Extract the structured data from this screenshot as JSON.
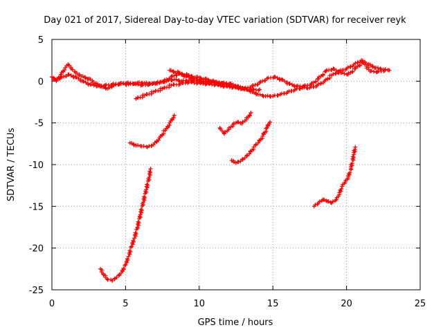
{
  "chart_data": {
    "type": "scatter",
    "title": "Day 021 of 2017, Sidereal Day-to-day VTEC variation (SDTVAR) for receiver reyk",
    "xlabel": "GPS time / hours",
    "ylabel": "SDTVAR / TECUs",
    "xlim": [
      0,
      25
    ],
    "ylim": [
      -25,
      5
    ],
    "grid": true,
    "grid_style": "dotted",
    "x_ticks": [
      0,
      5,
      10,
      15,
      20,
      25
    ],
    "y_ticks": [
      5,
      0,
      -5,
      -10,
      -15,
      -20,
      -25
    ],
    "x_tick_labels": [
      "0",
      "5",
      "10",
      "15",
      "20",
      "25"
    ],
    "y_tick_labels": [
      "5",
      "0",
      "-5",
      "-10",
      "-15",
      "-20",
      "-25"
    ],
    "marker": "+",
    "marker_color": "#ff0000",
    "series": [
      {
        "name": "arc-1",
        "points": [
          [
            0.0,
            0.5
          ],
          [
            0.3,
            0.0
          ],
          [
            0.6,
            0.8
          ],
          [
            0.9,
            1.6
          ],
          [
            1.1,
            2.0
          ],
          [
            1.3,
            1.5
          ],
          [
            1.6,
            1.0
          ],
          [
            2.0,
            0.6
          ],
          [
            2.5,
            0.3
          ],
          [
            3.0,
            -0.3
          ],
          [
            3.4,
            -0.7
          ],
          [
            3.8,
            -0.9
          ],
          [
            4.2,
            -0.5
          ],
          [
            4.7,
            -0.3
          ],
          [
            5.2,
            -0.4
          ],
          [
            5.8,
            -0.2
          ],
          [
            6.3,
            -0.2
          ],
          [
            6.8,
            -0.3
          ],
          [
            7.3,
            -0.2
          ],
          [
            7.8,
            0.0
          ],
          [
            8.3,
            0.2
          ],
          [
            8.8,
            0.0
          ],
          [
            9.3,
            0.1
          ],
          [
            9.8,
            0.0
          ],
          [
            10.3,
            -0.1
          ],
          [
            10.8,
            0.0
          ],
          [
            11.3,
            -0.3
          ],
          [
            11.8,
            -0.4
          ],
          [
            12.3,
            -0.7
          ],
          [
            12.8,
            -0.8
          ],
          [
            13.2,
            -1.0
          ],
          [
            13.6,
            -1.3
          ],
          [
            14.0,
            -1.6
          ],
          [
            14.5,
            -1.8
          ],
          [
            15.0,
            -1.8
          ],
          [
            15.5,
            -1.6
          ],
          [
            16.0,
            -1.3
          ],
          [
            16.5,
            -1.0
          ],
          [
            17.0,
            -0.8
          ],
          [
            17.5,
            -0.8
          ],
          [
            18.0,
            -0.5
          ],
          [
            18.5,
            0.0
          ],
          [
            19.0,
            0.7
          ],
          [
            19.5,
            1.2
          ],
          [
            20.0,
            1.5
          ],
          [
            20.5,
            2.0
          ],
          [
            21.0,
            2.5
          ],
          [
            21.5,
            2.0
          ],
          [
            22.0,
            1.6
          ],
          [
            22.5,
            1.4
          ],
          [
            22.9,
            1.3
          ]
        ]
      },
      {
        "name": "arc-2",
        "points": [
          [
            0.1,
            0.2
          ],
          [
            0.6,
            0.4
          ],
          [
            1.1,
            0.8
          ],
          [
            1.6,
            0.5
          ],
          [
            2.1,
            0.0
          ],
          [
            2.6,
            -0.4
          ],
          [
            3.1,
            -0.6
          ],
          [
            3.6,
            -0.5
          ],
          [
            4.1,
            -0.4
          ],
          [
            4.6,
            -0.3
          ],
          [
            5.1,
            -0.2
          ],
          [
            5.6,
            -0.3
          ],
          [
            6.1,
            -0.5
          ],
          [
            6.6,
            -0.4
          ],
          [
            7.1,
            -0.2
          ],
          [
            7.6,
            0.0
          ],
          [
            8.1,
            0.5
          ],
          [
            8.6,
            0.9
          ],
          [
            9.1,
            0.6
          ],
          [
            9.6,
            0.3
          ],
          [
            10.1,
            0.1
          ],
          [
            10.6,
            -0.2
          ],
          [
            11.1,
            -0.1
          ],
          [
            11.6,
            -0.2
          ],
          [
            12.1,
            -0.3
          ],
          [
            12.6,
            -0.6
          ],
          [
            13.1,
            -0.9
          ],
          [
            13.6,
            -0.6
          ],
          [
            14.1,
            -0.2
          ],
          [
            14.6,
            0.3
          ],
          [
            15.1,
            0.5
          ],
          [
            15.6,
            0.2
          ],
          [
            16.1,
            -0.3
          ],
          [
            16.6,
            -0.6
          ],
          [
            17.1,
            -0.6
          ],
          [
            17.6,
            -0.4
          ],
          [
            18.1,
            0.3
          ],
          [
            18.6,
            1.2
          ],
          [
            19.1,
            1.5
          ],
          [
            19.6,
            1.0
          ],
          [
            20.1,
            0.8
          ],
          [
            20.6,
            1.5
          ],
          [
            21.1,
            2.3
          ],
          [
            21.6,
            1.2
          ],
          [
            22.1,
            1.1
          ],
          [
            22.6,
            1.3
          ]
        ]
      },
      {
        "name": "arc-3",
        "points": [
          [
            5.7,
            -2.1
          ],
          [
            6.3,
            -1.7
          ],
          [
            6.9,
            -1.3
          ],
          [
            7.5,
            -0.9
          ],
          [
            8.1,
            -0.5
          ],
          [
            8.7,
            -0.3
          ],
          [
            9.3,
            -0.1
          ],
          [
            9.9,
            -0.2
          ],
          [
            10.5,
            -0.3
          ],
          [
            11.1,
            -0.4
          ],
          [
            11.7,
            -0.6
          ],
          [
            12.3,
            -0.7
          ],
          [
            12.9,
            -0.9
          ],
          [
            13.5,
            -1.0
          ],
          [
            14.1,
            -1.0
          ]
        ]
      },
      {
        "name": "arc-4",
        "points": [
          [
            8.0,
            1.3
          ],
          [
            8.6,
            1.0
          ],
          [
            9.2,
            0.7
          ],
          [
            9.8,
            0.5
          ],
          [
            10.4,
            0.3
          ],
          [
            11.0,
            -0.1
          ],
          [
            11.6,
            -0.4
          ]
        ]
      },
      {
        "name": "arc-5",
        "points": [
          [
            3.3,
            -22.5
          ],
          [
            3.5,
            -23.2
          ],
          [
            3.8,
            -23.8
          ],
          [
            4.1,
            -23.9
          ],
          [
            4.4,
            -23.5
          ],
          [
            4.7,
            -23.0
          ],
          [
            5.0,
            -22.0
          ],
          [
            5.2,
            -21.0
          ],
          [
            5.4,
            -19.8
          ],
          [
            5.6,
            -18.8
          ],
          [
            5.8,
            -17.5
          ],
          [
            6.0,
            -16.0
          ],
          [
            6.2,
            -14.5
          ],
          [
            6.4,
            -13.0
          ],
          [
            6.6,
            -11.5
          ],
          [
            6.7,
            -10.5
          ]
        ]
      },
      {
        "name": "arc-6",
        "points": [
          [
            5.3,
            -7.4
          ],
          [
            5.7,
            -7.7
          ],
          [
            6.1,
            -7.8
          ],
          [
            6.5,
            -7.9
          ],
          [
            6.9,
            -7.6
          ],
          [
            7.3,
            -6.8
          ],
          [
            7.7,
            -5.9
          ],
          [
            8.0,
            -5.0
          ],
          [
            8.3,
            -4.1
          ]
        ]
      },
      {
        "name": "arc-7",
        "points": [
          [
            11.4,
            -5.6
          ],
          [
            11.7,
            -6.3
          ],
          [
            12.0,
            -5.8
          ],
          [
            12.3,
            -5.2
          ],
          [
            12.6,
            -4.9
          ],
          [
            12.9,
            -5.1
          ],
          [
            13.2,
            -4.6
          ],
          [
            13.5,
            -3.8
          ]
        ]
      },
      {
        "name": "arc-8",
        "points": [
          [
            12.2,
            -9.5
          ],
          [
            12.5,
            -9.8
          ],
          [
            12.8,
            -9.6
          ],
          [
            13.1,
            -9.2
          ],
          [
            13.4,
            -8.7
          ],
          [
            13.7,
            -7.9
          ],
          [
            14.0,
            -7.4
          ],
          [
            14.3,
            -6.6
          ],
          [
            14.6,
            -5.6
          ],
          [
            14.8,
            -4.9
          ]
        ]
      },
      {
        "name": "arc-9",
        "points": [
          [
            17.8,
            -15.0
          ],
          [
            18.1,
            -14.6
          ],
          [
            18.4,
            -14.2
          ],
          [
            18.7,
            -14.4
          ],
          [
            19.0,
            -14.6
          ],
          [
            19.3,
            -14.2
          ],
          [
            19.5,
            -13.6
          ],
          [
            19.7,
            -12.6
          ],
          [
            19.9,
            -12.1
          ],
          [
            20.1,
            -11.6
          ],
          [
            20.3,
            -10.5
          ],
          [
            20.5,
            -8.8
          ],
          [
            20.6,
            -7.9
          ]
        ]
      }
    ]
  }
}
